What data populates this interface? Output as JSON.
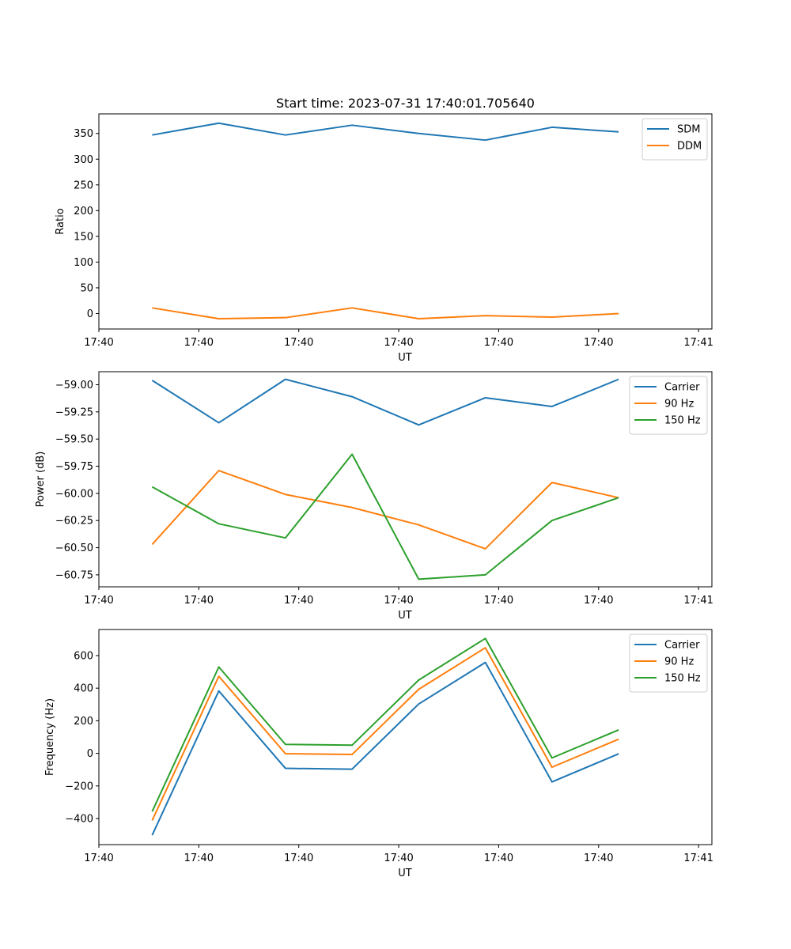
{
  "title": "Start time: 2023-07-31 17:40:01.705640",
  "colors": {
    "blue": "#1f77b4",
    "orange": "#ff7f0e",
    "green": "#2ca02c"
  },
  "chart_data": [
    {
      "type": "line",
      "xlabel": "UT",
      "ylabel": "Ratio",
      "x": [
        1,
        2,
        3,
        4,
        5,
        6,
        7,
        8
      ],
      "xlim": [
        0.2,
        9.4
      ],
      "xticks": [
        0.2,
        1.7,
        3.2,
        4.7,
        6.2,
        7.7,
        9.2
      ],
      "xtick_labels": [
        "17:40",
        "17:40",
        "17:40",
        "17:40",
        "17:40",
        "17:40",
        "17:41"
      ],
      "ylim": [
        -30,
        388
      ],
      "yticks": [
        0,
        50,
        100,
        150,
        200,
        250,
        300,
        350
      ],
      "ytick_labels": [
        "0",
        "50",
        "100",
        "150",
        "200",
        "250",
        "300",
        "350"
      ],
      "legend": "top-right",
      "series": [
        {
          "name": "SDM",
          "color": "#1f77b4",
          "values": [
            347,
            370,
            347,
            366,
            350,
            337,
            362,
            353
          ]
        },
        {
          "name": "DDM",
          "color": "#ff7f0e",
          "values": [
            11,
            -10,
            -8,
            11,
            -10,
            -4,
            -7,
            0
          ]
        }
      ]
    },
    {
      "type": "line",
      "xlabel": "UT",
      "ylabel": "Power (dB)",
      "x": [
        1,
        2,
        3,
        4,
        5,
        6,
        7,
        8
      ],
      "xlim": [
        0.2,
        9.4
      ],
      "xticks": [
        0.2,
        1.7,
        3.2,
        4.7,
        6.2,
        7.7,
        9.2
      ],
      "xtick_labels": [
        "17:40",
        "17:40",
        "17:40",
        "17:40",
        "17:40",
        "17:40",
        "17:41"
      ],
      "ylim": [
        -60.86,
        -58.88
      ],
      "yticks": [
        -59.0,
        -59.25,
        -59.5,
        -59.75,
        -60.0,
        -60.25,
        -60.5,
        -60.75
      ],
      "ytick_labels": [
        "−59.00",
        "−59.25",
        "−59.50",
        "−59.75",
        "−60.00",
        "−60.25",
        "−60.50",
        "−60.75"
      ],
      "legend": "top-right",
      "series": [
        {
          "name": "Carrier",
          "color": "#1f77b4",
          "values": [
            -58.96,
            -59.35,
            -58.95,
            -59.11,
            -59.37,
            -59.12,
            -59.2,
            -58.95
          ]
        },
        {
          "name": "90 Hz",
          "color": "#ff7f0e",
          "values": [
            -60.47,
            -59.79,
            -60.01,
            -60.13,
            -60.29,
            -60.51,
            -59.9,
            -60.04
          ]
        },
        {
          "name": "150 Hz",
          "color": "#2ca02c",
          "values": [
            -59.94,
            -60.28,
            -60.41,
            -59.64,
            -60.79,
            -60.75,
            -60.25,
            -60.04
          ]
        }
      ]
    },
    {
      "type": "line",
      "xlabel": "UT",
      "ylabel": "Frequency (Hz)",
      "x": [
        1,
        2,
        3,
        4,
        5,
        6,
        7,
        8
      ],
      "xlim": [
        0.2,
        9.4
      ],
      "xticks": [
        0.2,
        1.7,
        3.2,
        4.7,
        6.2,
        7.7,
        9.2
      ],
      "xtick_labels": [
        "17:40",
        "17:40",
        "17:40",
        "17:40",
        "17:40",
        "17:40",
        "17:41"
      ],
      "ylim": [
        -560,
        760
      ],
      "yticks": [
        600,
        400,
        200,
        0,
        -200,
        -400
      ],
      "ytick_labels": [
        "600",
        "400",
        "200",
        "0",
        "−200",
        "−400"
      ],
      "legend": "top-right",
      "series": [
        {
          "name": "Carrier",
          "color": "#1f77b4",
          "values": [
            -502,
            383,
            -92,
            -97,
            303,
            558,
            -175,
            -3
          ]
        },
        {
          "name": "90 Hz",
          "color": "#ff7f0e",
          "values": [
            -412,
            473,
            -2,
            -7,
            393,
            648,
            -85,
            87
          ]
        },
        {
          "name": "150 Hz",
          "color": "#2ca02c",
          "values": [
            -357,
            530,
            55,
            50,
            450,
            705,
            -28,
            144
          ]
        }
      ]
    }
  ]
}
